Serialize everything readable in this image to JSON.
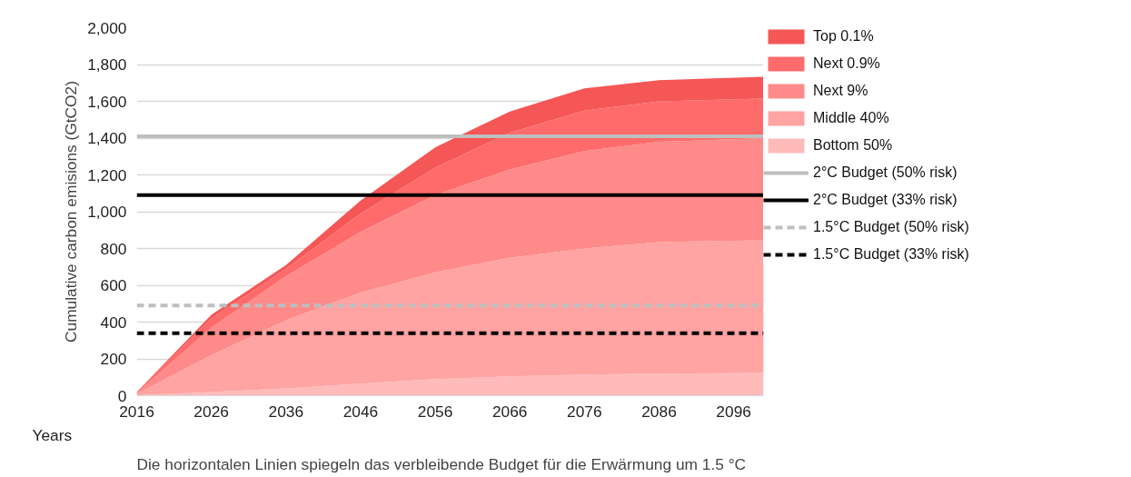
{
  "chart_data": {
    "type": "area",
    "stacked": true,
    "ylabel": "Cumulative carbon emisions (GtCO2)",
    "xlabel": "Years",
    "x": [
      2016,
      2026,
      2036,
      2046,
      2056,
      2066,
      2076,
      2086,
      2100
    ],
    "xlim": [
      2016,
      2100
    ],
    "xticks": [
      2016,
      2026,
      2036,
      2046,
      2056,
      2066,
      2076,
      2086,
      2096
    ],
    "ylim": [
      0,
      2000
    ],
    "yticks": [
      {
        "value": 0,
        "label": "0"
      },
      {
        "value": 200,
        "label": "200"
      },
      {
        "value": 400,
        "label": "400"
      },
      {
        "value": 600,
        "label": "600"
      },
      {
        "value": 800,
        "label": "800"
      },
      {
        "value": 1000,
        "label": "1,000"
      },
      {
        "value": 1200,
        "label": "1,200"
      },
      {
        "value": 1400,
        "label": "1,400"
      },
      {
        "value": 1600,
        "label": "1,600"
      },
      {
        "value": 1800,
        "label": "1,800"
      },
      {
        "value": 2000,
        "label": "2,000"
      }
    ],
    "grid": "y",
    "legend": "right",
    "series": [
      {
        "name": "Bottom 50%",
        "color": "#ffbaba",
        "values": [
          3,
          20,
          40,
          65,
          90,
          105,
          115,
          120,
          123
        ]
      },
      {
        "name": "Middle 40%",
        "color": "#ffa3a3",
        "values": [
          7,
          200,
          370,
          495,
          580,
          645,
          685,
          715,
          722
        ]
      },
      {
        "name": "Next 9%",
        "color": "#ff8a8a",
        "values": [
          5,
          150,
          240,
          330,
          420,
          480,
          530,
          545,
          555
        ]
      },
      {
        "name": "Next 0.9%",
        "color": "#ff6b6b",
        "values": [
          3,
          50,
          40,
          100,
          150,
          200,
          220,
          220,
          215
        ]
      },
      {
        "name": "Top 0.1%",
        "color": "#f55656",
        "values": [
          2,
          20,
          20,
          70,
          110,
          115,
          120,
          115,
          118
        ]
      }
    ],
    "ref_lines": [
      {
        "axis": "y",
        "value": 1410,
        "label": "2°C Budget (50% risk)",
        "color": "#bfbfbf",
        "line_style": "solid"
      },
      {
        "axis": "y",
        "value": 1090,
        "label": "2°C Budget (33% risk)",
        "color": "#000000",
        "line_style": "solid"
      },
      {
        "axis": "y",
        "value": 490,
        "label": "1.5°C Budget (50% risk)",
        "color": "#bfbfbf",
        "line_style": "dashed"
      },
      {
        "axis": "y",
        "value": 340,
        "label": "1.5°C Budget (33% risk)",
        "color": "#000000",
        "line_style": "dashed"
      }
    ],
    "annotations": [
      "Die horizontalen Linien spiegeln das verbleibende Budget für die Erwärmung um 1.5 °C"
    ]
  }
}
